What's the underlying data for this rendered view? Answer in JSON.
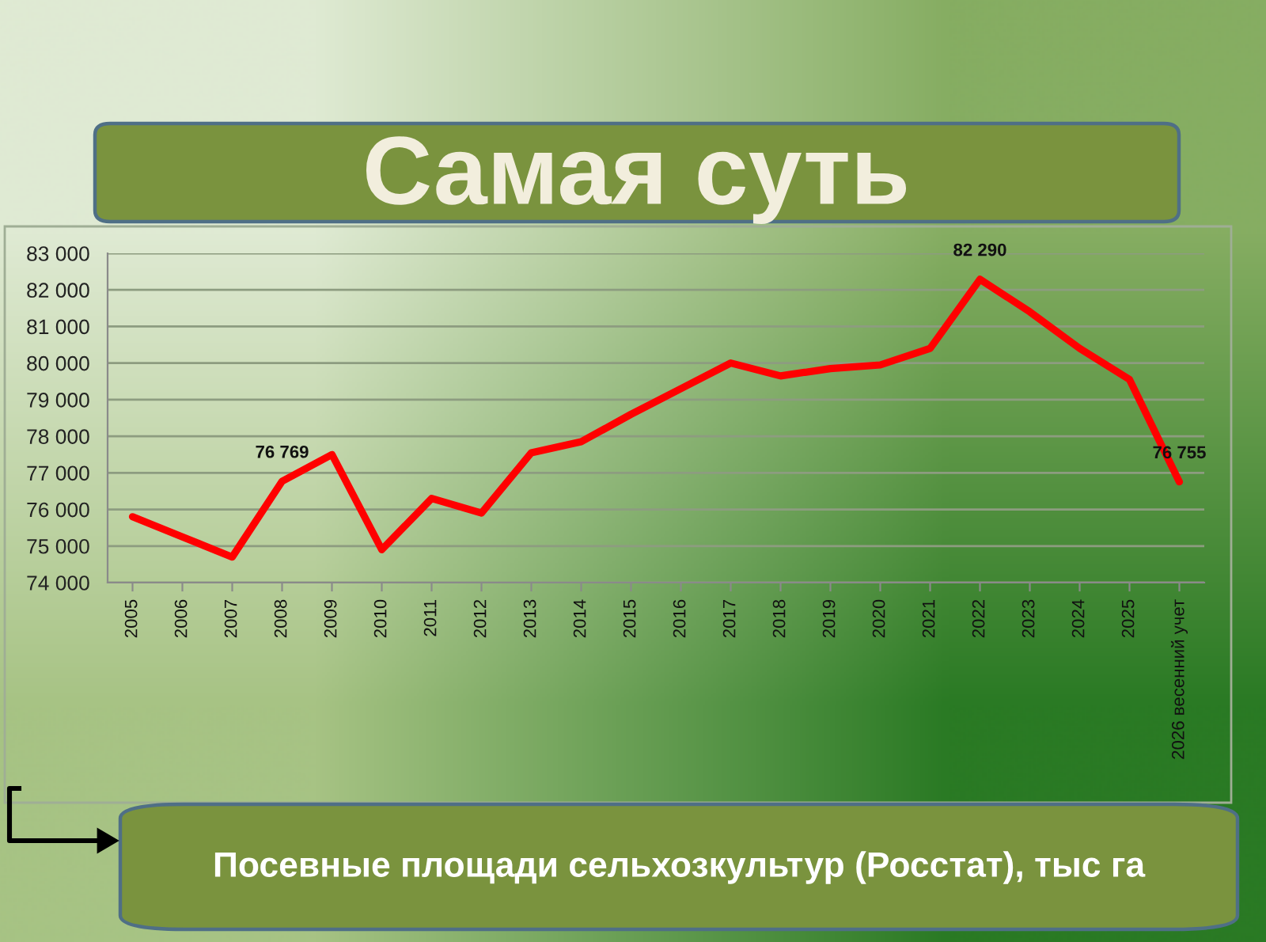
{
  "chart_data": {
    "type": "line",
    "title": "Самая суть",
    "categories": [
      "2005",
      "2006",
      "2007",
      "2008",
      "2009",
      "2010",
      "2011",
      "2012",
      "2013",
      "2014",
      "2015",
      "2016",
      "2017",
      "2018",
      "2019",
      "2020",
      "2021",
      "2022",
      "2023",
      "2024",
      "2025",
      "2026 весенний учет"
    ],
    "series": [
      {
        "color": "#ff0000",
        "values": [
          75800,
          75250,
          74700,
          76769,
          77500,
          74900,
          76300,
          75900,
          77550,
          77850,
          78600,
          79300,
          80000,
          79650,
          79850,
          79950,
          80400,
          82290,
          81400,
          80400,
          79550,
          76755
        ],
        "value_labels": [
          null,
          null,
          null,
          "76 769",
          null,
          null,
          null,
          null,
          null,
          null,
          null,
          null,
          null,
          null,
          null,
          null,
          null,
          "82 290",
          null,
          null,
          null,
          "76 755"
        ]
      }
    ],
    "ylim": [
      74000,
      83000
    ],
    "yticks": [
      {
        "value": 74000,
        "label": "74 000"
      },
      {
        "value": 75000,
        "label": "75 000"
      },
      {
        "value": 76000,
        "label": "76 000"
      },
      {
        "value": 77000,
        "label": "77 000"
      },
      {
        "value": 78000,
        "label": "78 000"
      },
      {
        "value": 79000,
        "label": "79 000"
      },
      {
        "value": 80000,
        "label": "80 000"
      },
      {
        "value": 81000,
        "label": "81 000"
      },
      {
        "value": 82000,
        "label": "82 000"
      },
      {
        "value": 83000,
        "label": "83 000"
      }
    ],
    "grid": "y",
    "marker": "none",
    "line_style": "solid",
    "annotations": [
      "Посевные площади сельхозкультур (Росстат), тыс га"
    ]
  }
}
